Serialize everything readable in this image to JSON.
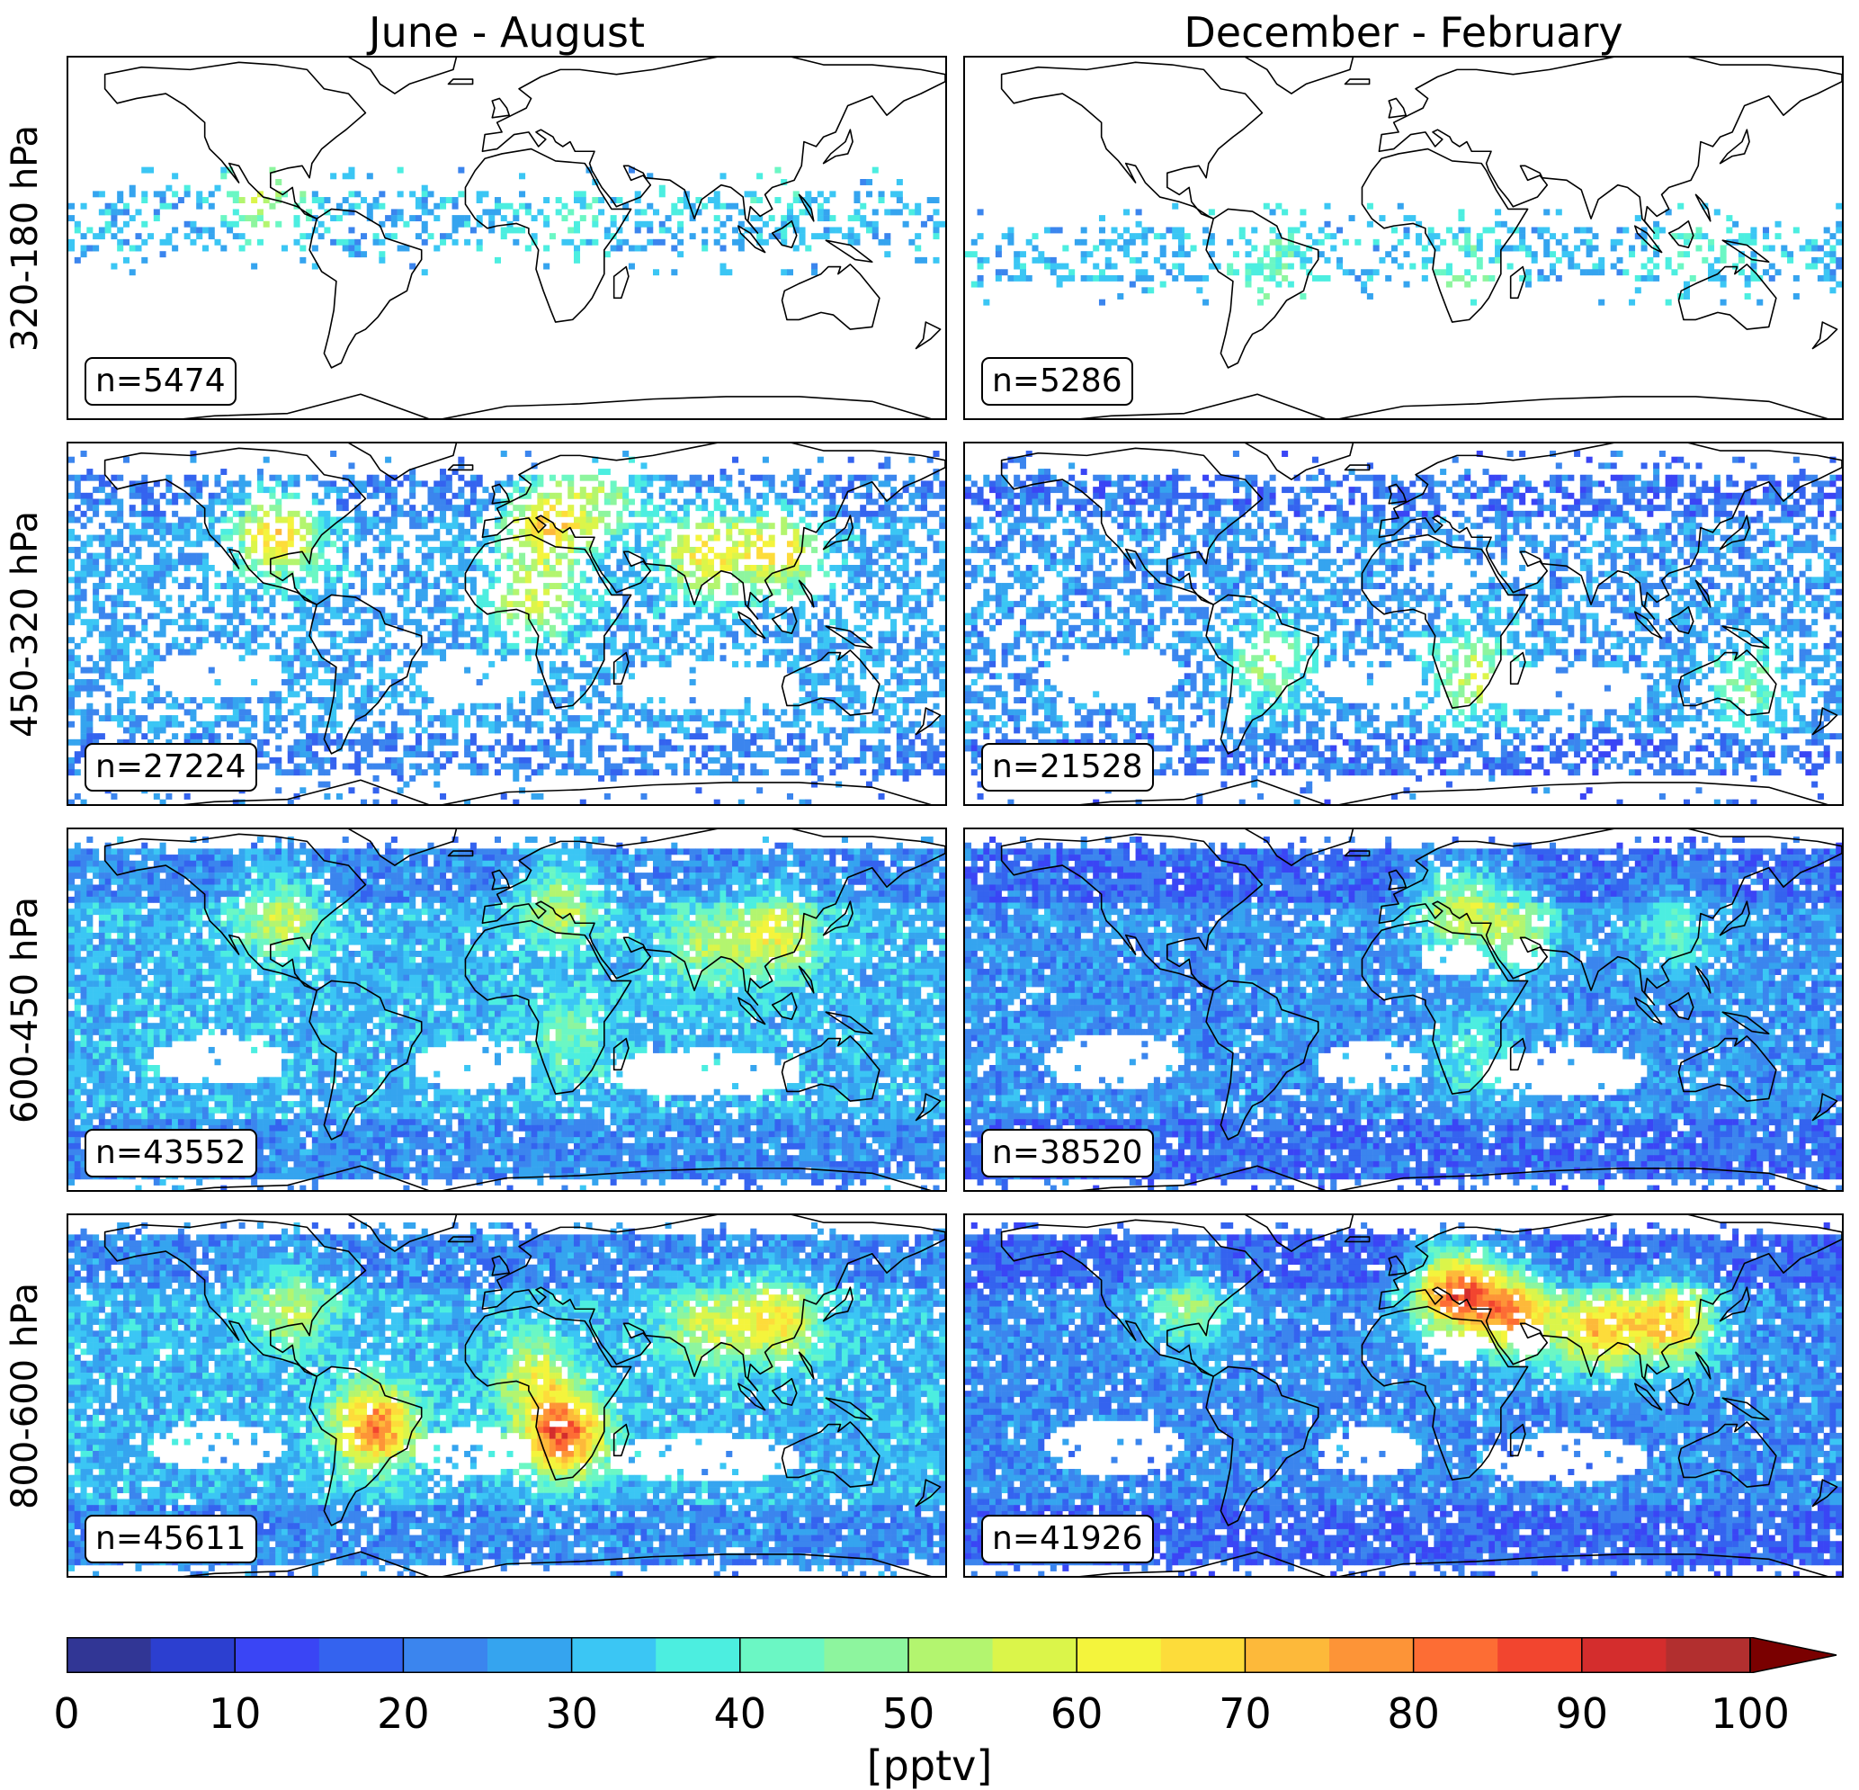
{
  "columns": [
    "June - August",
    "December - February"
  ],
  "rows": [
    "320-180 hPa",
    "450-320 hPa",
    "600-450 hPa",
    "800-600 hPa"
  ],
  "counts": [
    [
      "n=5474",
      "n=5286"
    ],
    [
      "n=27224",
      "n=21528"
    ],
    [
      "n=43552",
      "n=38520"
    ],
    [
      "n=45611",
      "n=41926"
    ]
  ],
  "colorbar": {
    "unit": "[pptv]",
    "ticks": [
      "0",
      "10",
      "20",
      "30",
      "40",
      "50",
      "60",
      "70",
      "80",
      "90",
      "100"
    ],
    "min": 0,
    "max": 100,
    "step": 5,
    "extend": "max",
    "colors": [
      "#313695",
      "#2c3fd0",
      "#3a45f5",
      "#3463ef",
      "#3b85ee",
      "#35a4ef",
      "#3bc6f4",
      "#4ceee0",
      "#6bf7c4",
      "#8df59e",
      "#b3f56f",
      "#dbf54a",
      "#f4f43c",
      "#fddc3a",
      "#fdb93a",
      "#fd9437",
      "#fd6d34",
      "#f2452f",
      "#d42d2d",
      "#b22f2f"
    ],
    "over_color": "#7a0000"
  },
  "chart_data": {
    "type": "heatmap",
    "description_units": "pptv",
    "panels": [
      {
        "row": "320-180 hPa",
        "column": "June - August",
        "n": 5474,
        "typical_range_pptv": [
          10,
          50
        ],
        "sparse": true
      },
      {
        "row": "320-180 hPa",
        "column": "December - February",
        "n": 5286,
        "typical_range_pptv": [
          10,
          50
        ],
        "sparse": true
      },
      {
        "row": "450-320 hPa",
        "column": "June - August",
        "n": 27224,
        "typical_range_pptv": [
          10,
          90
        ],
        "hotspots": [
          "North America",
          "Europe",
          "South Asia",
          "East Asia",
          "Central Africa"
        ]
      },
      {
        "row": "450-320 hPa",
        "column": "December - February",
        "n": 21528,
        "typical_range_pptv": [
          10,
          70
        ],
        "hotspots": [
          "South America",
          "Southern Africa",
          "Australia"
        ]
      },
      {
        "row": "600-450 hPa",
        "column": "June - August",
        "n": 43552,
        "typical_range_pptv": [
          15,
          70
        ],
        "hotspots": [
          "North America",
          "Europe",
          "East Asia"
        ]
      },
      {
        "row": "600-450 hPa",
        "column": "December - February",
        "n": 38520,
        "typical_range_pptv": [
          15,
          70
        ],
        "hotspots": [
          "Europe",
          "Middle East"
        ]
      },
      {
        "row": "800-600 hPa",
        "column": "June - August",
        "n": 45611,
        "typical_range_pptv": [
          15,
          100
        ],
        "hotspots": [
          "Amazon",
          "Southern Africa",
          "East Asia",
          "North America"
        ]
      },
      {
        "row": "800-600 hPa",
        "column": "December - February",
        "n": 41926,
        "typical_range_pptv": [
          15,
          100
        ],
        "hotspots": [
          "Europe",
          "Middle East",
          "South Asia",
          "East Asia"
        ]
      }
    ],
    "colorbar_range": [
      0,
      100
    ]
  }
}
